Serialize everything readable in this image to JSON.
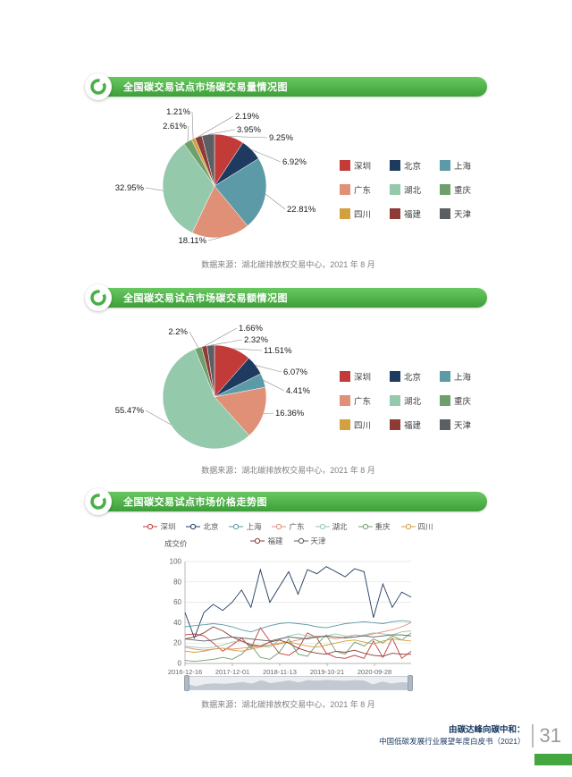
{
  "page": {
    "footer_line1": "由碳达峰向碳中和：",
    "footer_line2": "中国低碳发展行业展望年度白皮书（2021）",
    "page_number": "31"
  },
  "chart_data": [
    {
      "type": "pie",
      "title": "全国碳交易试点市场碳交易量情况图",
      "source_note": "数据来源：湖北碳排放权交易中心，2021 年 8 月",
      "legend_position": "right",
      "slices": [
        {
          "label": "深圳",
          "value": 9.25,
          "display": "9.25%",
          "color": "#c23b38",
          "label_pos": [
            61,
            -54
          ]
        },
        {
          "label": "北京",
          "value": 6.92,
          "display": "6.92%",
          "color": "#1f3a5f",
          "label_pos": [
            76,
            -27
          ]
        },
        {
          "label": "上海",
          "value": 22.81,
          "display": "22.81%",
          "color": "#5d9aa8",
          "label_pos": [
            81,
            26
          ]
        },
        {
          "label": "广东",
          "value": 18.11,
          "display": "18.11%",
          "color": "#e09077",
          "label_pos": [
            -9,
            61
          ]
        },
        {
          "label": "湖北",
          "value": 32.95,
          "display": "32.95%",
          "color": "#94c9ac",
          "label_pos": [
            -79,
            2
          ]
        },
        {
          "label": "重庆",
          "value": 2.61,
          "display": "2.61%",
          "color": "#6fa06b",
          "label_pos": [
            -31,
            -67
          ]
        },
        {
          "label": "四川",
          "value": 1.21,
          "display": "1.21%",
          "color": "#d2a03c",
          "label_pos": [
            -27,
            -83
          ]
        },
        {
          "label": "福建",
          "value": 2.19,
          "display": "2.19%",
          "color": "#8e3b36",
          "label_pos": [
            23,
            -78
          ]
        },
        {
          "label": "天津",
          "value": 3.95,
          "display": "3.95%",
          "color": "#5b5f63",
          "label_pos": [
            25,
            -63
          ]
        }
      ]
    },
    {
      "type": "pie",
      "title": "全国碳交易试点市场碳交易额情况图",
      "source_note": "数据来源：湖北碳排放权交易中心，2021 年 8 月",
      "legend_position": "right",
      "slices": [
        {
          "label": "深圳",
          "value": 11.51,
          "display": "11.51%",
          "color": "#c23b38",
          "label_pos": [
            55,
            -52
          ]
        },
        {
          "label": "北京",
          "value": 6.07,
          "display": "6.07%",
          "color": "#1f3a5f",
          "label_pos": [
            77,
            -28
          ]
        },
        {
          "label": "上海",
          "value": 4.41,
          "display": "4.41%",
          "color": "#5d9aa8",
          "label_pos": [
            80,
            -7
          ]
        },
        {
          "label": "广东",
          "value": 16.36,
          "display": "16.36%",
          "color": "#e09077",
          "label_pos": [
            68,
            18
          ]
        },
        {
          "label": "湖北",
          "value": 55.47,
          "display": "55.47%",
          "color": "#94c9ac",
          "label_pos": [
            -79,
            15
          ]
        },
        {
          "label": "重庆",
          "value": 2.2,
          "display": "2.2%",
          "color": "#6fa06b",
          "label_pos": [
            -30,
            -73
          ]
        },
        {
          "label": "四川",
          "value": 0,
          "display": "",
          "color": "#d2a03c",
          "label_pos": [
            0,
            0
          ]
        },
        {
          "label": "福建",
          "value": 1.66,
          "display": "1.66%",
          "color": "#8e3b36",
          "label_pos": [
            27,
            -77
          ]
        },
        {
          "label": "天津",
          "value": 2.32,
          "display": "2.32%",
          "color": "#5b5f63",
          "label_pos": [
            33,
            -64
          ]
        }
      ]
    },
    {
      "type": "line",
      "title": "全国碳交易试点市场价格走势图",
      "source_note": "数据来源：湖北碳排放权交易中心，2021 年 8 月",
      "ylabel": "成交价",
      "ylim": [
        0,
        100
      ],
      "yticks": [
        0,
        20,
        40,
        60,
        80,
        100
      ],
      "x_ticks": [
        "2016-12-16",
        "2017-12-01",
        "2018-11-13",
        "2019-10-21",
        "2020-09-28"
      ],
      "grid": true,
      "legend_position": "top",
      "series": [
        {
          "name": "深圳",
          "color": "#c23b38",
          "values": [
            28,
            29,
            27,
            20,
            12,
            18,
            25,
            15,
            35,
            22,
            10,
            8,
            14,
            30,
            25,
            10,
            6,
            5,
            8,
            5,
            22,
            6,
            25,
            5,
            12
          ]
        },
        {
          "name": "北京",
          "color": "#1f3a5f",
          "values": [
            50,
            25,
            50,
            58,
            52,
            60,
            72,
            55,
            92,
            60,
            75,
            90,
            68,
            92,
            88,
            95,
            90,
            85,
            93,
            90,
            45,
            78,
            55,
            70,
            65
          ]
        },
        {
          "name": "上海",
          "color": "#5d9aa8",
          "values": [
            36,
            37,
            38,
            39,
            38,
            36,
            33,
            31,
            34,
            37,
            39,
            40,
            39,
            38,
            36,
            35,
            37,
            39,
            40,
            41,
            40,
            39,
            41,
            42,
            41
          ]
        },
        {
          "name": "广东",
          "color": "#e09077",
          "values": [
            16,
            14,
            13,
            14,
            15,
            14,
            15,
            16,
            17,
            18,
            19,
            21,
            23,
            25,
            27,
            26,
            24,
            26,
            28,
            27,
            29,
            31,
            33,
            36,
            40
          ]
        },
        {
          "name": "湖北",
          "color": "#94c9ac",
          "values": [
            17,
            16,
            15,
            16,
            18,
            21,
            22,
            19,
            17,
            16,
            23,
            27,
            29,
            27,
            25,
            27,
            29,
            27,
            26,
            28,
            30,
            29,
            28,
            31,
            32
          ]
        },
        {
          "name": "重庆",
          "color": "#6fa06b",
          "values": [
            3,
            2,
            3,
            4,
            6,
            4,
            9,
            18,
            6,
            4,
            11,
            24,
            9,
            7,
            19,
            28,
            12,
            9,
            21,
            17,
            24,
            20,
            27,
            23,
            30
          ]
        },
        {
          "name": "四川",
          "color": "#d2a03c",
          "values": [
            12,
            11,
            12,
            14,
            15,
            13,
            12,
            14,
            16,
            18,
            20,
            21,
            19,
            17,
            16,
            18,
            20,
            22,
            23,
            21,
            19,
            22,
            24,
            23,
            22
          ]
        },
        {
          "name": "福建",
          "color": "#8e3b36",
          "values": [
            24,
            26,
            30,
            36,
            32,
            26,
            22,
            18,
            17,
            21,
            23,
            20,
            15,
            12,
            10,
            9,
            12,
            11,
            13,
            10,
            8,
            7,
            10,
            9,
            9
          ]
        },
        {
          "name": "天津",
          "color": "#5b5f63",
          "values": [
            24,
            23,
            22,
            23,
            25,
            26,
            25,
            24,
            23,
            22,
            24,
            26,
            25,
            24,
            26,
            27,
            26,
            25,
            26,
            27,
            26,
            27,
            28,
            28,
            27
          ]
        }
      ]
    }
  ]
}
